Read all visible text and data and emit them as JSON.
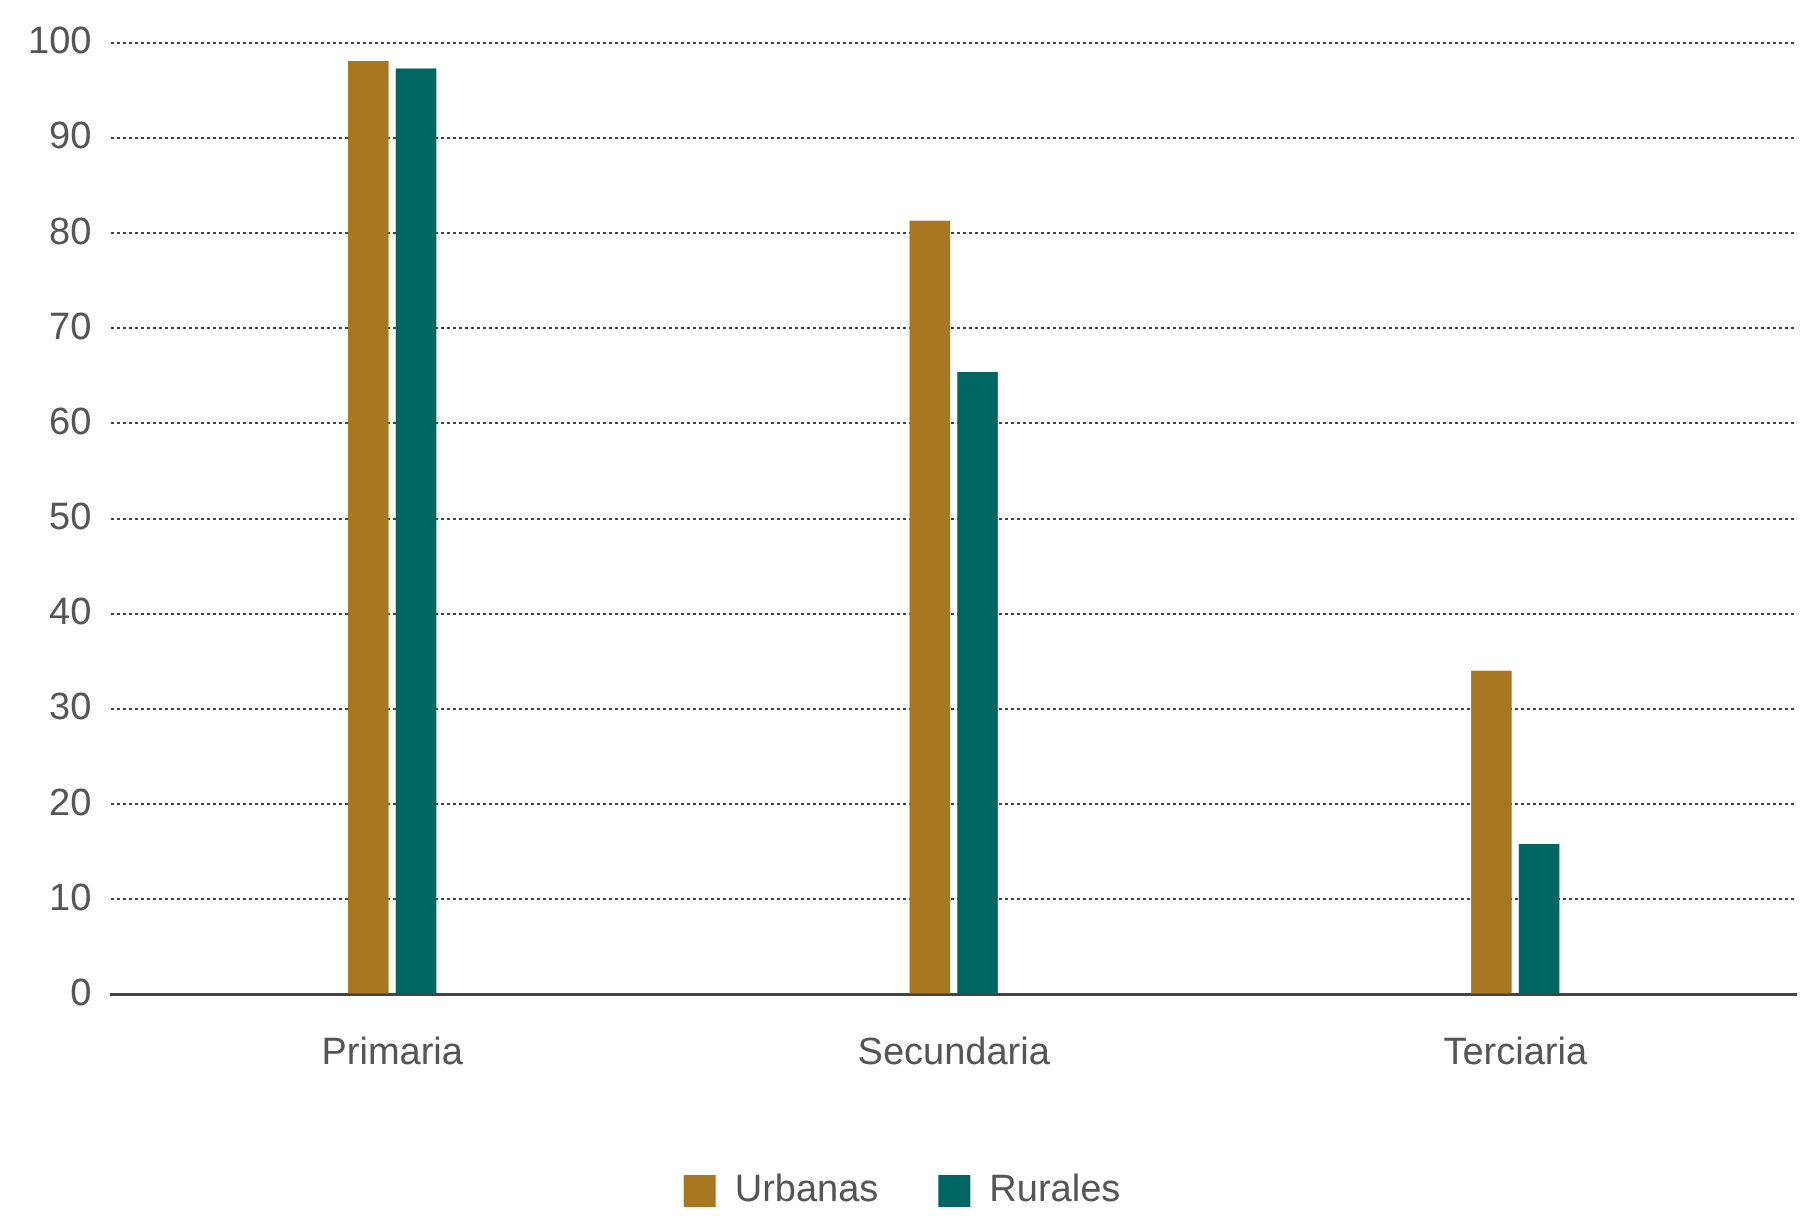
{
  "chart_data": {
    "type": "bar",
    "categories": [
      "Primaria",
      "Secundaria",
      "Terciaria"
    ],
    "series": [
      {
        "name": "Urbanas",
        "color": "#a87722",
        "values": [
          98.1,
          81.3,
          34.0
        ]
      },
      {
        "name": "Rurales",
        "color": "#006661",
        "values": [
          97.3,
          65.4,
          15.8
        ]
      }
    ],
    "ylim": [
      0,
      100
    ],
    "yticks": [
      0,
      10,
      20,
      30,
      40,
      50,
      60,
      70,
      80,
      90,
      100
    ],
    "grid": "y",
    "legend": "bottom"
  }
}
